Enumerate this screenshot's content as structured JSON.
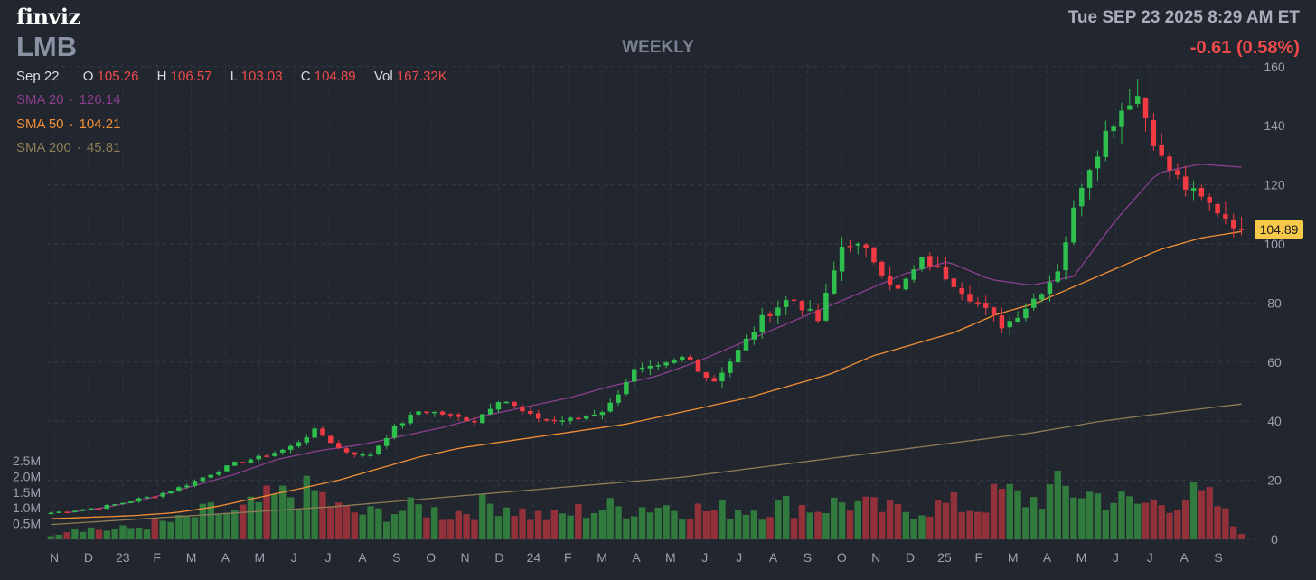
{
  "header": {
    "logo": "finviz",
    "ticker": "LMB",
    "timeframe": "WEEKLY",
    "datetime": "Tue SEP 23 2025 8:29 AM ET",
    "change": "-0.61 (0.58%)"
  },
  "ohlc": {
    "date": "Sep 22",
    "open_label": "O",
    "open": "105.26",
    "high_label": "H",
    "high": "106.57",
    "low_label": "L",
    "low": "103.03",
    "close_label": "C",
    "close": "104.89",
    "vol_label": "Vol",
    "vol": "167.32K"
  },
  "sma": {
    "sma20": {
      "label": "SMA 20",
      "value": "126.14",
      "color": "#8c3f8e"
    },
    "sma50": {
      "label": "SMA 50",
      "value": "104.21",
      "color": "#f29036"
    },
    "sma200": {
      "label": "SMA 200",
      "value": "45.81",
      "color": "#8d7d55"
    }
  },
  "colors": {
    "up": "#2fbf4f",
    "down": "#f23a45",
    "vol_up": "#2f7a3c",
    "vol_down": "#93313a",
    "price_tag_bg": "#f6c94a",
    "background": "#22262f"
  },
  "chart_data": {
    "type": "candlestick",
    "title": "",
    "ylim": [
      0,
      160
    ],
    "y_ticks": [
      "160",
      "140",
      "120",
      "100",
      "80",
      "60",
      "40",
      "20",
      "0"
    ],
    "volume_ticks": [
      "2.5M",
      "2.0M",
      "1.5M",
      "1.0M",
      "0.5M"
    ],
    "volume_max": 2500000,
    "x_tick_labels": [
      "N",
      "D",
      "23",
      "F",
      "M",
      "A",
      "M",
      "J",
      "J",
      "A",
      "S",
      "O",
      "N",
      "D",
      "24",
      "F",
      "M",
      "A",
      "M",
      "J",
      "J",
      "A",
      "S",
      "O",
      "N",
      "D",
      "25",
      "F",
      "M",
      "A",
      "M",
      "J",
      "J",
      "A",
      "S"
    ],
    "last_price": "104.89",
    "price_anchors": [
      9,
      10,
      11,
      13,
      15,
      18,
      22,
      26,
      28,
      31,
      37,
      30,
      28,
      38,
      44,
      42,
      40,
      48,
      42,
      40,
      41,
      44,
      57,
      58,
      62,
      53,
      64,
      76,
      82,
      74,
      102,
      96,
      84,
      95,
      88,
      80,
      72,
      80,
      90,
      122,
      140,
      152,
      128,
      118,
      112,
      105
    ],
    "volume_anchors": [
      0.15,
      0.4,
      0.3,
      0.35,
      0.5,
      0.6,
      0.9,
      0.8,
      1.2,
      1.4,
      1.5,
      0.9,
      0.8,
      0.9,
      1.0,
      0.8,
      1.0,
      1.2,
      0.8,
      0.7,
      0.9,
      1.0,
      1.0,
      1.1,
      1.0,
      0.9,
      1.0,
      1.0,
      1.1,
      1.0,
      1.2,
      1.0,
      0.9,
      1.0,
      1.1,
      1.0,
      1.5,
      1.2,
      1.6,
      1.5,
      1.3,
      1.1,
      1.2,
      1.4,
      1.2,
      0.1
    ],
    "sma20_anchors": [
      9,
      11,
      14,
      18,
      22,
      27,
      30,
      32,
      35,
      38,
      42,
      45,
      48,
      52,
      55,
      60,
      66,
      72,
      78,
      84,
      90,
      94,
      88,
      86,
      89,
      108,
      124,
      127,
      126
    ],
    "sma50_anchors": [
      7,
      7.5,
      8,
      9,
      11,
      14,
      17,
      20,
      24,
      28,
      31,
      33,
      35,
      37,
      39,
      42,
      45,
      48,
      52,
      56,
      62,
      66,
      70,
      76,
      80,
      86,
      92,
      98,
      102,
      104.2
    ],
    "sma200_anchors": [
      5,
      6.5,
      8,
      9.5,
      11,
      13,
      15,
      17,
      19,
      21,
      24,
      27,
      30,
      33,
      36,
      40,
      43,
      45.8
    ]
  }
}
